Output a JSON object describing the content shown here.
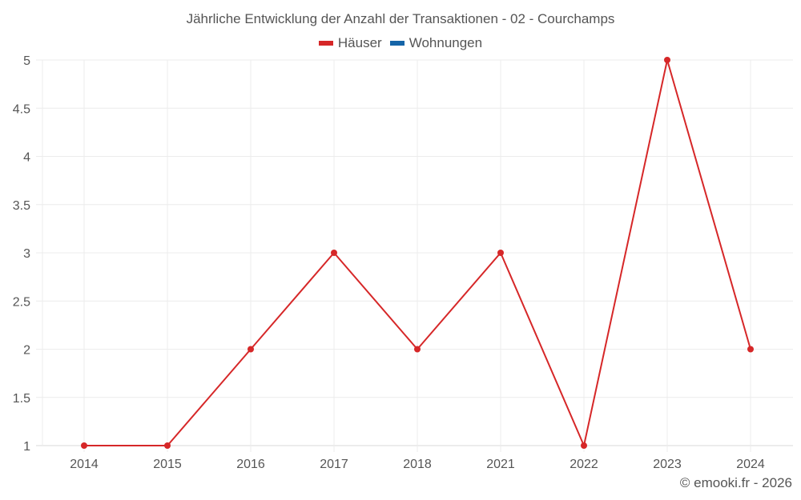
{
  "title": "Jährliche Entwicklung der Anzahl der Transaktionen - 02 - Courchamps",
  "legend": [
    {
      "label": "Häuser",
      "color": "#d62728"
    },
    {
      "label": "Wohnungen",
      "color": "#1565a8"
    }
  ],
  "footer": "© emooki.fr - 2026",
  "chart_data": {
    "type": "line",
    "title": "Jährliche Entwicklung der Anzahl der Transaktionen - 02 - Courchamps",
    "xlabel": "",
    "ylabel": "",
    "categories": [
      "2014",
      "2015",
      "2016",
      "2017",
      "2018",
      "2021",
      "2022",
      "2023",
      "2024"
    ],
    "series": [
      {
        "name": "Häuser",
        "color": "#d62728",
        "values": [
          1,
          1,
          2,
          3,
          2,
          3,
          1,
          5,
          2
        ]
      },
      {
        "name": "Wohnungen",
        "color": "#1565a8",
        "values": []
      }
    ],
    "ylim": [
      1,
      5
    ],
    "yticks": [
      "1",
      "1.5",
      "2",
      "2.5",
      "3",
      "3.5",
      "4",
      "4.5",
      "5"
    ],
    "grid": true,
    "legend_position": "top"
  }
}
